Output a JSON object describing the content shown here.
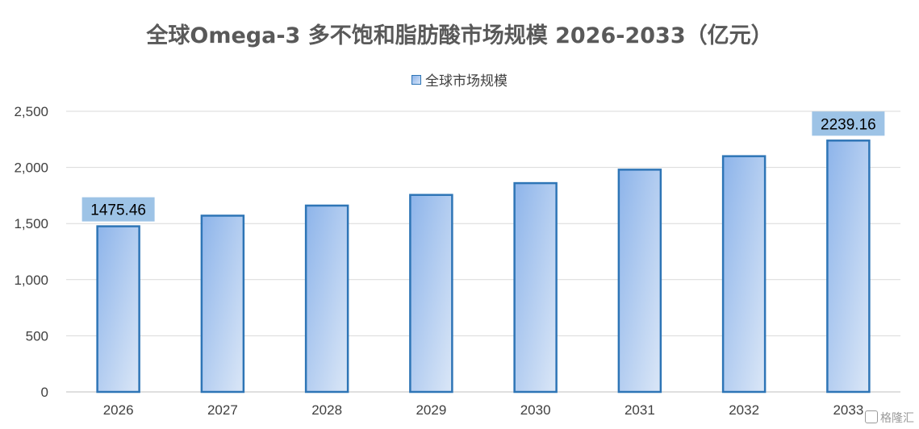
{
  "chart_data": {
    "type": "bar",
    "title": "全球Omega-3 多不饱和脂肪酸市场规模 2026-2033（亿元）",
    "categories": [
      "2026",
      "2027",
      "2028",
      "2029",
      "2030",
      "2031",
      "2032",
      "2033"
    ],
    "series": [
      {
        "name": "全球市场规模",
        "values": [
          1475.46,
          1570,
          1660,
          1755,
          1860,
          1980,
          2100,
          2239.16
        ]
      }
    ],
    "data_labels": [
      {
        "category": "2026",
        "text": "1475.46"
      },
      {
        "category": "2033",
        "text": "2239.16"
      }
    ],
    "ylim": [
      0,
      2500
    ],
    "yticks": [
      "0",
      "500",
      "1,000",
      "1,500",
      "2,000",
      "2,500"
    ],
    "ytick_values": [
      0,
      500,
      1000,
      1500,
      2000,
      2500
    ],
    "xlabel": "",
    "ylabel": "",
    "grid": true,
    "legend_position": "top",
    "colors": {
      "bar_fill_start": "#8db4ea",
      "bar_fill_end": "#dbe7f7",
      "bar_border": "#2e75b6",
      "label_box": "#9dc3e6",
      "grid": "#d9d9d9"
    }
  },
  "watermark": {
    "text": "格隆汇",
    "icon": "gelonghui-logo-icon"
  }
}
